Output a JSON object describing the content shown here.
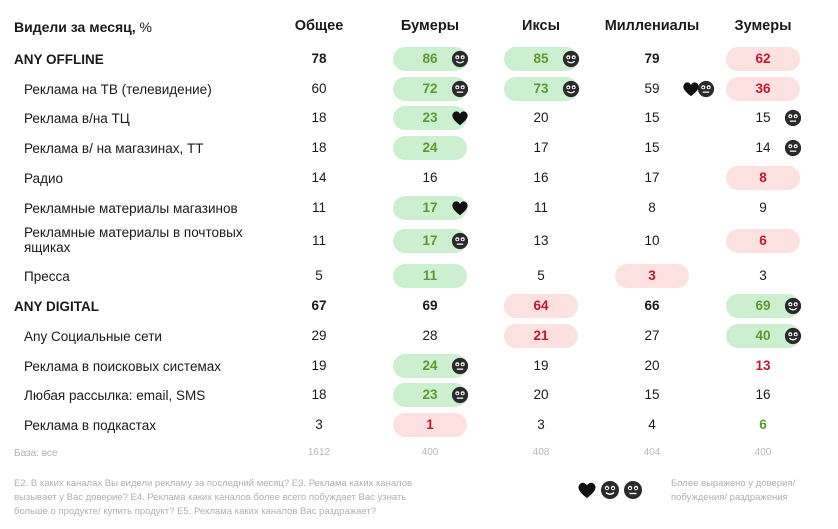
{
  "chart_data": {
    "type": "table",
    "title_bold": "Видели за месяц,",
    "title_unit": " %",
    "columns": [
      "Общее",
      "Бумеры",
      "Иксы",
      "Миллениалы",
      "Зумеры"
    ],
    "rows": [
      {
        "label": "ANY OFFLINE",
        "bold": true,
        "values": [
          "78",
          "86",
          "85",
          "79",
          "62"
        ],
        "hl": [
          "",
          "g",
          "g",
          "",
          "r"
        ],
        "emo": [
          "",
          "smile",
          "smile",
          "",
          ""
        ]
      },
      {
        "label": "Реклама на ТВ (телевидение)",
        "bold": false,
        "values": [
          "60",
          "72",
          "73",
          "59",
          "36"
        ],
        "hl": [
          "",
          "g",
          "g",
          "",
          "r"
        ],
        "emo": [
          "",
          "neutral",
          "smile",
          "heartsmile",
          ""
        ]
      },
      {
        "label": "Реклама в/на ТЦ",
        "bold": false,
        "values": [
          "18",
          "23",
          "20",
          "15",
          "15"
        ],
        "hl": [
          "",
          "g",
          "",
          "",
          ""
        ],
        "emo": [
          "",
          "heart",
          "",
          "",
          "neutral"
        ]
      },
      {
        "label": "Реклама в/ на магазинах, ТТ",
        "bold": false,
        "values": [
          "18",
          "24",
          "17",
          "15",
          "14"
        ],
        "hl": [
          "",
          "g",
          "",
          "",
          ""
        ],
        "emo": [
          "",
          "",
          "",
          "",
          "neutral"
        ]
      },
      {
        "label": "Радио",
        "bold": false,
        "values": [
          "14",
          "16",
          "16",
          "17",
          "8"
        ],
        "hl": [
          "",
          "",
          "",
          "",
          "r"
        ],
        "emo": [
          "",
          "",
          "",
          "",
          ""
        ]
      },
      {
        "label": "Рекламные материалы магазинов",
        "bold": false,
        "values": [
          "11",
          "17",
          "11",
          "8",
          "9"
        ],
        "hl": [
          "",
          "g",
          "",
          "",
          ""
        ],
        "emo": [
          "",
          "heart",
          "",
          "",
          ""
        ]
      },
      {
        "label": "Рекламные материалы в почтовых ящиках",
        "bold": false,
        "values": [
          "11",
          "17",
          "13",
          "10",
          "6"
        ],
        "hl": [
          "",
          "g",
          "",
          "",
          "r"
        ],
        "emo": [
          "",
          "neutral",
          "",
          "",
          ""
        ]
      },
      {
        "label": "Пресса",
        "bold": false,
        "values": [
          "5",
          "11",
          "5",
          "3",
          "3"
        ],
        "hl": [
          "",
          "g",
          "",
          "r",
          ""
        ],
        "emo": [
          "",
          "",
          "",
          "",
          ""
        ]
      },
      {
        "label": "ANY DIGITAL",
        "bold": true,
        "values": [
          "67",
          "69",
          "64",
          "66",
          "69"
        ],
        "hl": [
          "",
          "",
          "r",
          "",
          "g"
        ],
        "emo": [
          "",
          "",
          "",
          "",
          "smile"
        ]
      },
      {
        "label": "Any Социальные сети",
        "bold": false,
        "values": [
          "29",
          "28",
          "21",
          "27",
          "40"
        ],
        "hl": [
          "",
          "",
          "r",
          "",
          "g"
        ],
        "emo": [
          "",
          "",
          "",
          "",
          "smile"
        ]
      },
      {
        "label": "Реклама в поисковых системах",
        "bold": false,
        "values": [
          "19",
          "24",
          "19",
          "20",
          "13"
        ],
        "hl": [
          "",
          "g",
          "",
          "",
          "rt"
        ],
        "emo": [
          "",
          "neutral",
          "",
          "",
          ""
        ]
      },
      {
        "label": "Любая рассылка: email, SMS",
        "bold": false,
        "values": [
          "18",
          "23",
          "20",
          "15",
          "16"
        ],
        "hl": [
          "",
          "g",
          "",
          "",
          ""
        ],
        "emo": [
          "",
          "neutral",
          "",
          "",
          ""
        ]
      },
      {
        "label": "Реклама в подкастах",
        "bold": false,
        "values": [
          "3",
          "1",
          "3",
          "4",
          "6"
        ],
        "hl": [
          "",
          "r",
          "",
          "",
          "gt"
        ],
        "emo": [
          "",
          "",
          "",
          "",
          ""
        ]
      }
    ],
    "base_label": "База: все",
    "base_values": [
      "1612",
      "400",
      "408",
      "404",
      "400"
    ]
  },
  "footnote": "E2. В каких каналах Вы видели рекламу за последний месяц? E3. Реклама каких каналов вызывает у Вас доверие? E4. Реклама каких каналов более всего побуждает Вас узнать больше о продукте/ купить продукт? E5. Реклама каких каналов Вас раздражает?",
  "legend_text": "Более выражено у доверия/ побуждения/ раздражения",
  "legend_icons": [
    "heart-icon",
    "smile-icon",
    "neutral-icon"
  ],
  "colors": {
    "green_text": "#5a9a2e",
    "red_text": "#c0192a",
    "green_fill": "#ccefd0",
    "red_fill": "#fde1e1"
  }
}
